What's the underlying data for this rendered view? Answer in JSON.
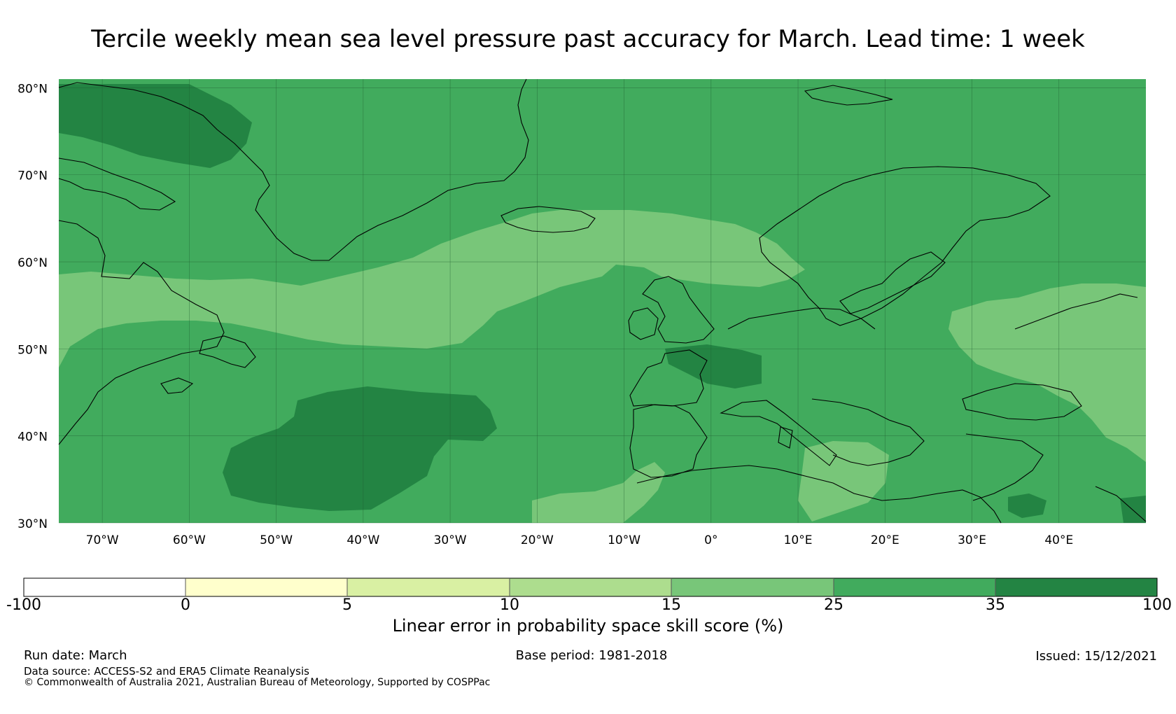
{
  "title": "Tercile weekly mean sea level pressure past accuracy for March. Lead time: 1 week",
  "map": {
    "lat_labels": [
      "80°N",
      "70°N",
      "60°N",
      "50°N",
      "40°N",
      "30°N"
    ],
    "lat_values": [
      80,
      70,
      60,
      50,
      40,
      30
    ],
    "lon_labels": [
      "70°W",
      "60°W",
      "50°W",
      "40°W",
      "30°W",
      "20°W",
      "10°W",
      "0°",
      "10°E",
      "20°E",
      "30°E",
      "40°E"
    ],
    "lon_values": [
      -70,
      -60,
      -50,
      -40,
      -30,
      -20,
      -10,
      0,
      10,
      20,
      30,
      40
    ],
    "extent": {
      "lon_min": -75,
      "lon_max": 50,
      "lat_min": 30,
      "lat_max": 81
    }
  },
  "colorbar": {
    "label": "Linear error in probability space skill score (%)",
    "ticks": [
      "-100",
      "0",
      "5",
      "10",
      "15",
      "25",
      "35",
      "100"
    ],
    "bins": [
      {
        "range": "-100 to 0",
        "color": "#ffffff"
      },
      {
        "range": "0 to 5",
        "color": "#ffffcc"
      },
      {
        "range": "5 to 10",
        "color": "#d9f0a3"
      },
      {
        "range": "10 to 15",
        "color": "#addd8e"
      },
      {
        "range": "15 to 25",
        "color": "#78c679"
      },
      {
        "range": "25 to 35",
        "color": "#41ab5d"
      },
      {
        "range": "35 to 100",
        "color": "#238443"
      }
    ]
  },
  "footer": {
    "run_date": "Run date: March",
    "base_period": "Base period: 1981-2018",
    "issued": "Issued: 15/12/2021",
    "data_source": "Data source: ACCESS-S2 and ERA5 Climate Reanalysis",
    "copyright": "© Commonwealth of Australia 2021, Australian Bureau of Meteorology, Supported by COSPPac"
  }
}
